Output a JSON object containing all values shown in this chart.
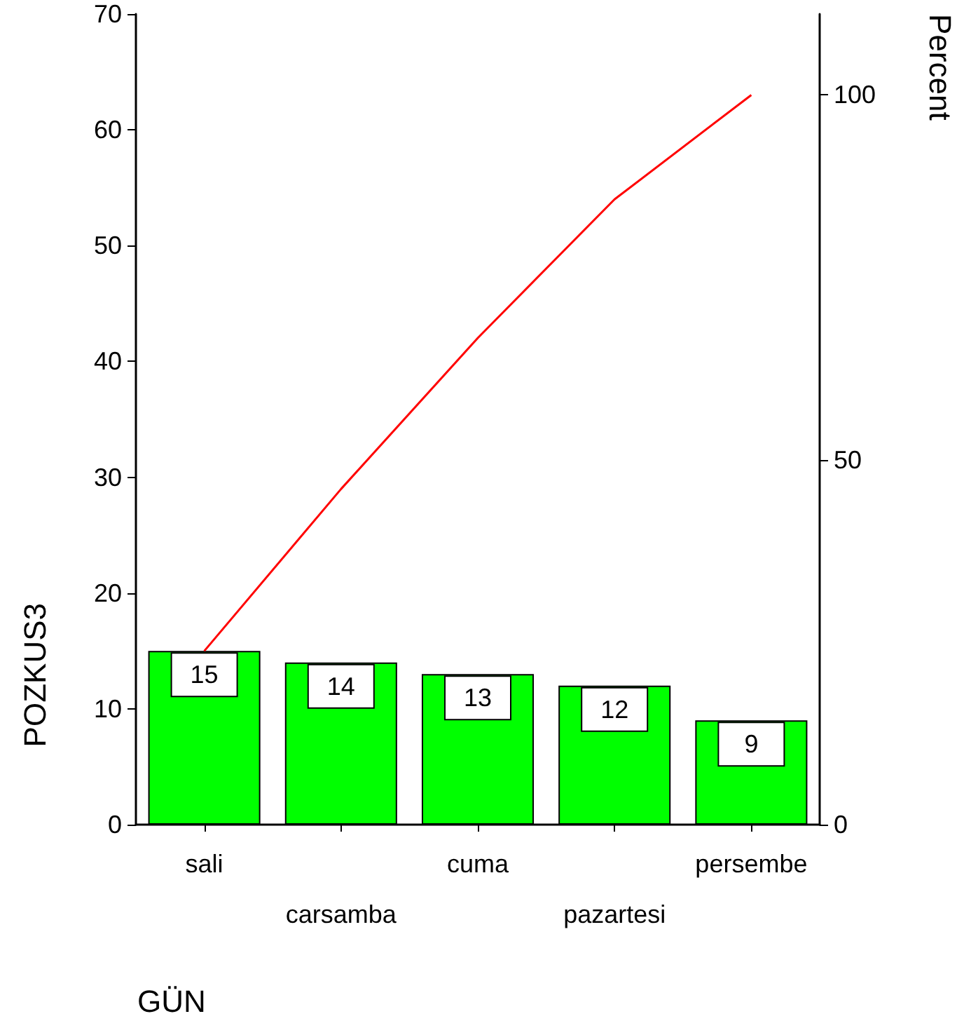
{
  "chart_data": {
    "type": "bar",
    "xlabel": "GÜN",
    "ylabel": "POZKUS3",
    "y2label": "Percent",
    "categories": [
      "sali",
      "carsamba",
      "cuma",
      "pazartesi",
      "persembe"
    ],
    "series": [
      {
        "color": "#00ff00",
        "values": [
          15,
          14,
          13,
          12,
          9
        ],
        "value_labels": [
          "15",
          "14",
          "13",
          "12",
          "9"
        ]
      },
      {
        "type": "line",
        "axis": "y2",
        "color": "#ff0000",
        "values": [
          23.8,
          46.0,
          66.7,
          85.7,
          100
        ]
      }
    ],
    "ylim": [
      0,
      70
    ],
    "yticks": [
      0,
      10,
      20,
      30,
      40,
      50,
      60,
      70
    ],
    "y2lim": [
      0,
      111.1
    ],
    "y2ticks": [
      0,
      50,
      100
    ],
    "grid": false,
    "marker": "none",
    "line_style": "solid"
  }
}
